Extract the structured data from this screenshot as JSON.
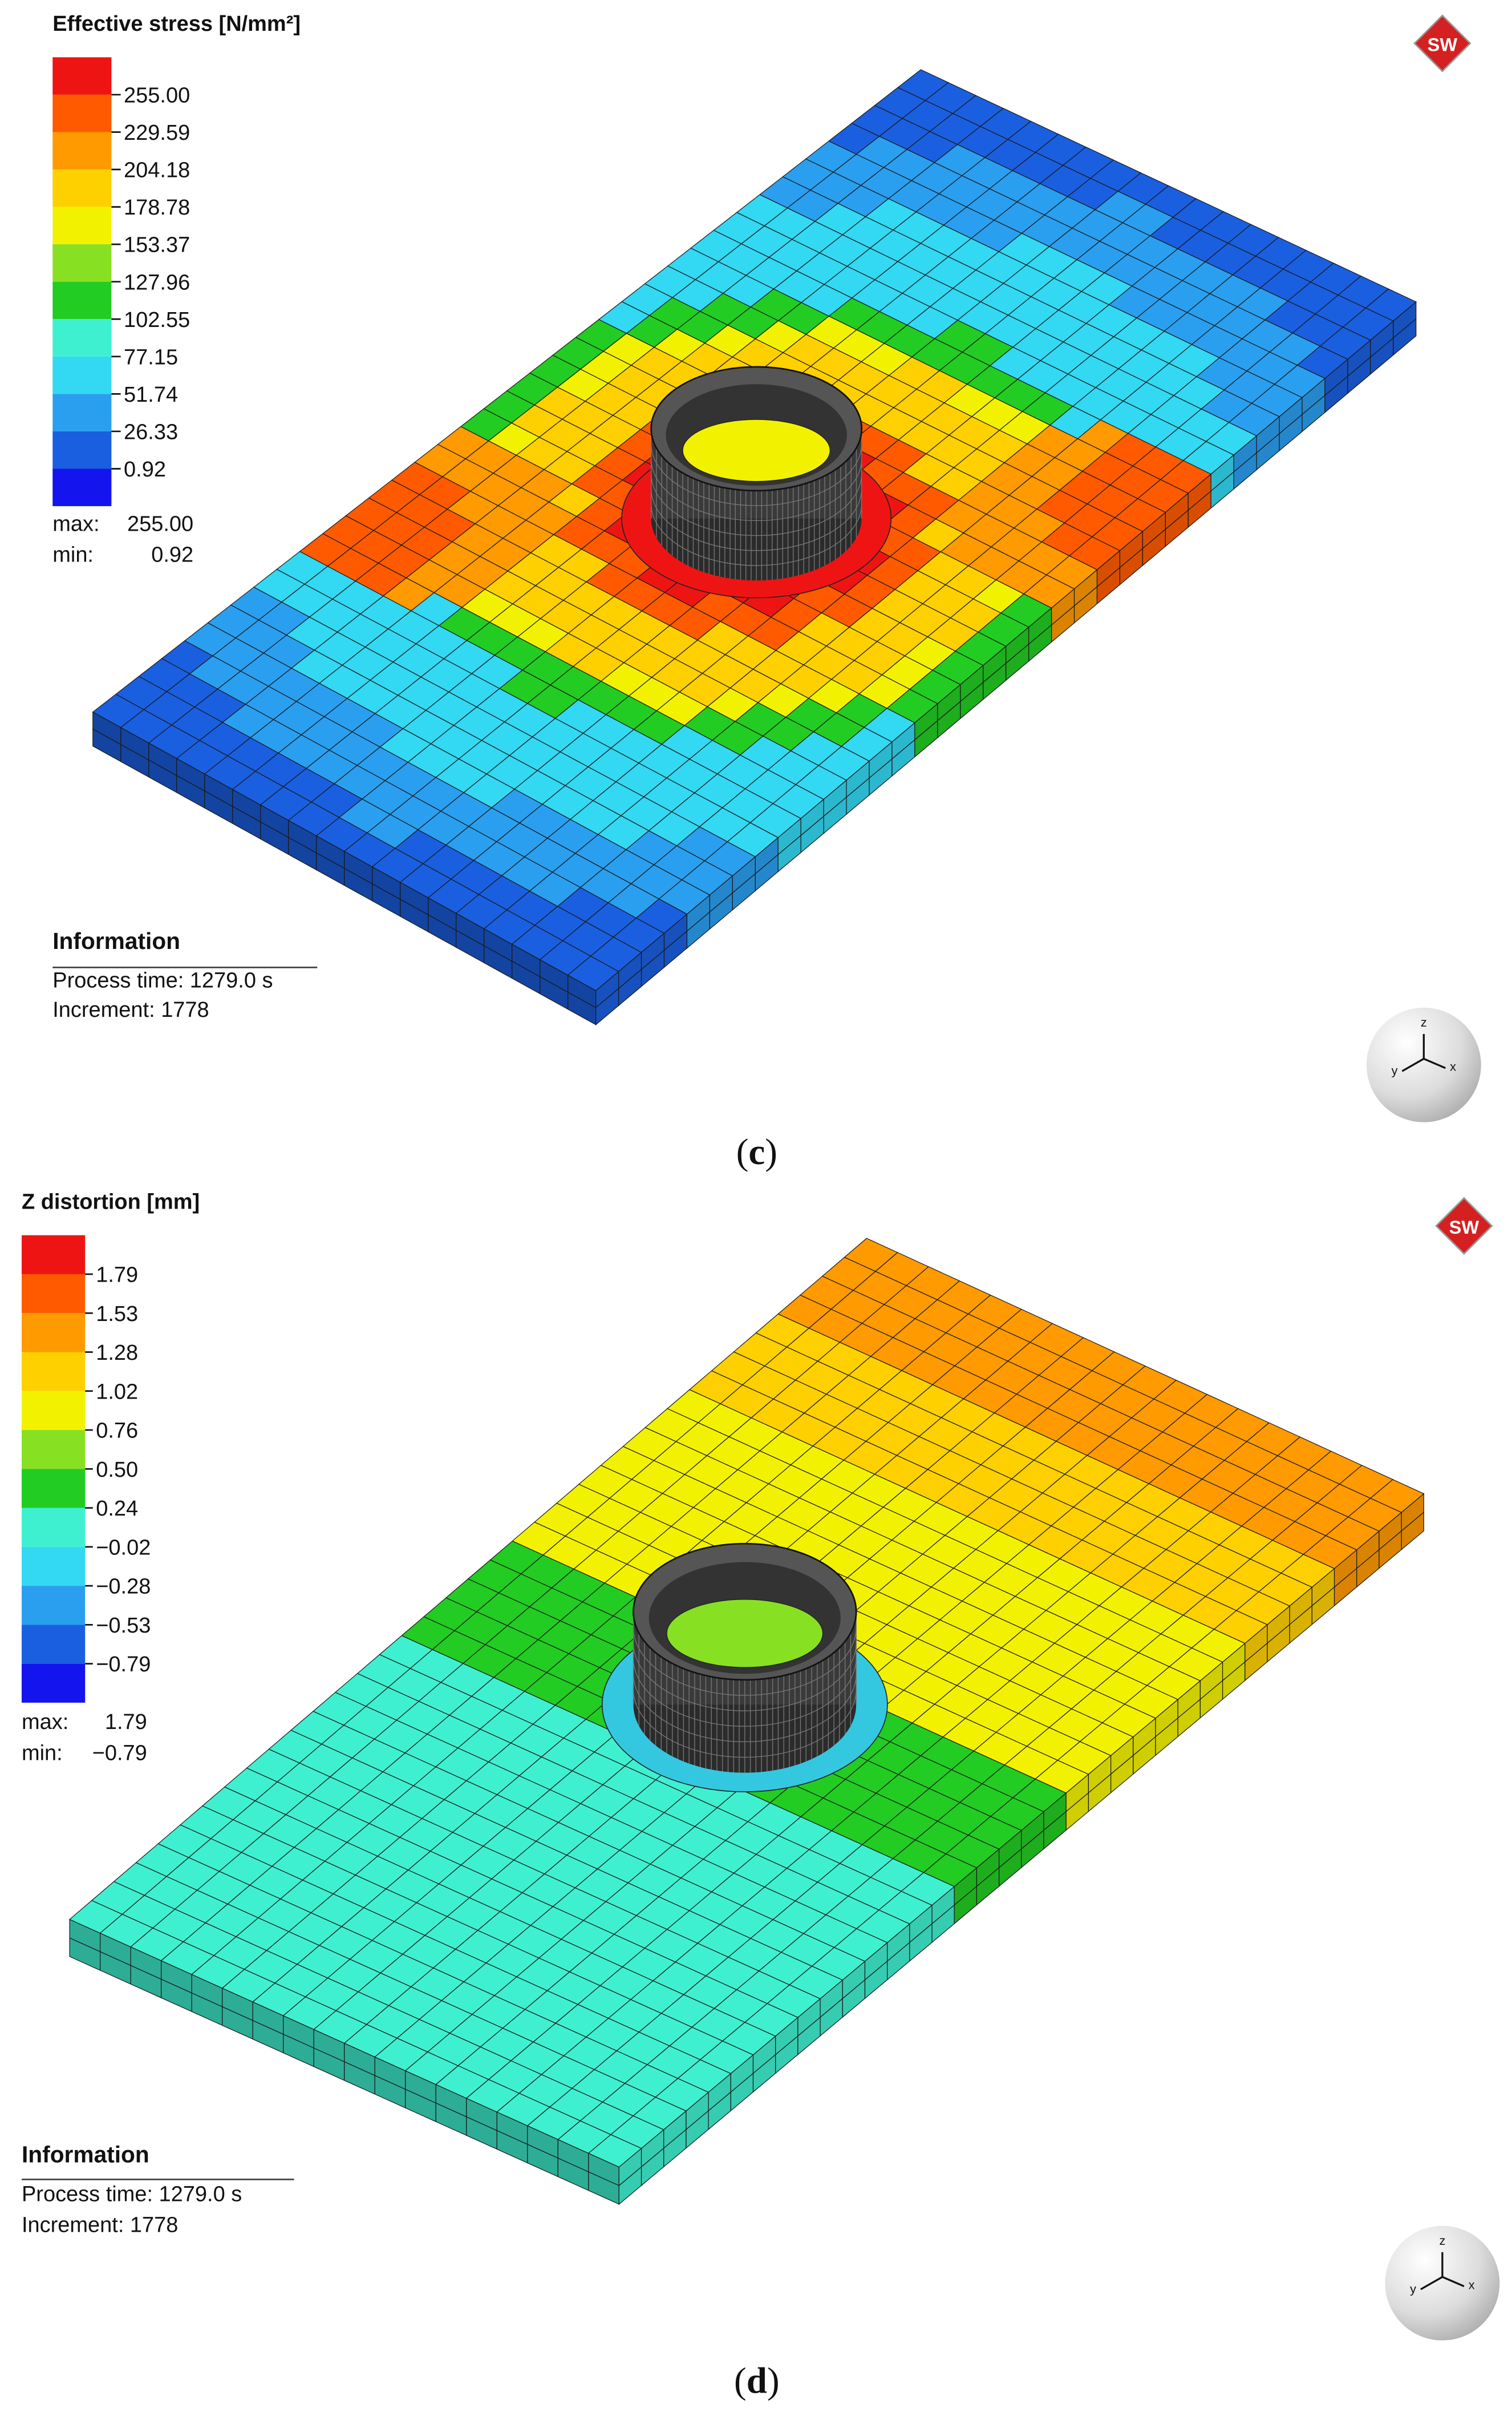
{
  "panels": [
    {
      "legend": {
        "title": "Effective stress [N/mm²]",
        "labels": [
          "255.00",
          "229.59",
          "204.18",
          "178.78",
          "153.37",
          "127.96",
          "102.55",
          "77.15",
          "51.74",
          "26.33",
          "0.92"
        ],
        "max_label": "max:",
        "max": "255.00",
        "min_label": "min:",
        "min": "0.92"
      },
      "information": {
        "title": "Information",
        "process_time": "Process time: 1279.0 s",
        "increment": "Increment: 1778"
      },
      "logo": "SW",
      "axes": [
        "y",
        "z",
        "x"
      ],
      "caption": {
        "open": "(",
        "letter": "c",
        "close": ")"
      }
    },
    {
      "legend": {
        "title": "Z distortion [mm]",
        "labels": [
          "1.79",
          "1.53",
          "1.28",
          "1.02",
          "0.76",
          "0.50",
          "0.24",
          "−0.02",
          "−0.28",
          "−0.53",
          "−0.79"
        ],
        "max_label": "max:",
        "max": "1.79",
        "min_label": "min:",
        "min": "−0.79"
      },
      "information": {
        "title": "Information",
        "process_time": "Process time: 1279.0 s",
        "increment": "Increment: 1778"
      },
      "logo": "SW",
      "axes": [
        "y",
        "z",
        "x"
      ],
      "caption": {
        "open": "(",
        "letter": "d",
        "close": ")"
      }
    }
  ]
}
